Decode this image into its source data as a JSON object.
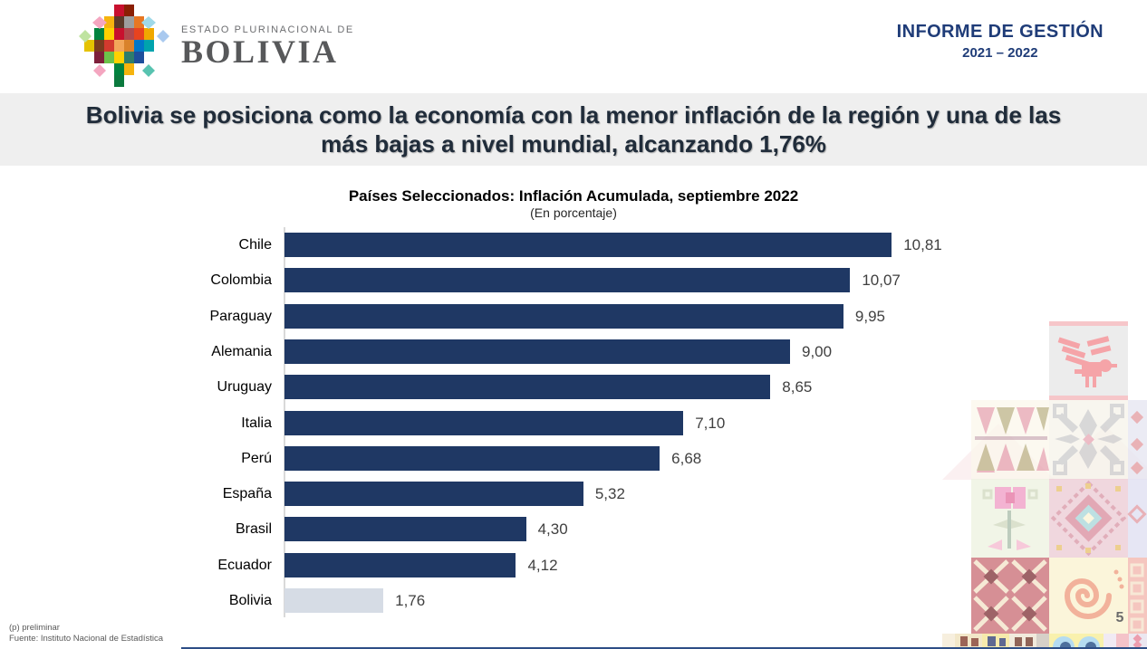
{
  "header": {
    "logo": {
      "eyebrow": "ESTADO PLURINACIONAL DE",
      "name": "BOLIVIA"
    },
    "report_title": "INFORME DE GESTIÓN",
    "report_period": "2021 – 2022"
  },
  "banner": {
    "line1": "Bolivia se posiciona como la economía con la menor inflación de la región y una de las",
    "line2": "más bajas a nivel mundial, alcanzando 1,76%"
  },
  "chart_data": {
    "type": "bar",
    "orientation": "horizontal",
    "title": "Países Seleccionados: Inflación Acumulada, septiembre 2022",
    "subtitle": "(En porcentaje)",
    "categories": [
      "Chile",
      "Colombia",
      "Paraguay",
      "Alemania",
      "Uruguay",
      "Italia",
      "Perú",
      "España",
      "Brasil",
      "Ecuador",
      "Bolivia"
    ],
    "values": [
      10.81,
      10.07,
      9.95,
      9.0,
      8.65,
      7.1,
      6.68,
      5.32,
      4.3,
      4.12,
      1.76
    ],
    "value_labels": [
      "10,81",
      "10,07",
      "9,95",
      "9,00",
      "8,65",
      "7,10",
      "6,68",
      "5,32",
      "4,30",
      "4,12",
      "1,76"
    ],
    "xlim": [
      0,
      11.8
    ],
    "grid": false,
    "legend": null,
    "bar_color": "#1F3864",
    "highlight_category": "Bolivia",
    "highlight_bar_color": "#D6DCE5"
  },
  "footnotes": {
    "note": "(p) preliminar",
    "source": "Fuente: Instituto Nacional de Estadística"
  },
  "page_number": "5",
  "colors": {
    "accent_navy": "#1F3864",
    "banner_bg": "#EFEFEF",
    "banner_text": "#202C3A",
    "header_title": "#1F3C78",
    "axis_line": "#D9D9D9",
    "value_text": "#404040",
    "footnote_text": "#595959",
    "page_number": "#6B6B6B"
  }
}
